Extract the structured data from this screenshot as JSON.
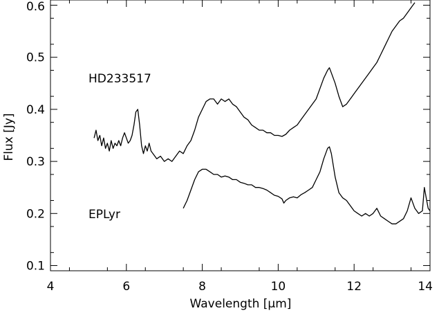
{
  "chart_data": {
    "type": "line",
    "title": "",
    "xlabel": "Wavelength [μm]",
    "ylabel": "Flux [Jy]",
    "xlim": [
      4,
      14
    ],
    "ylim": [
      0.09,
      0.61
    ],
    "xticks": [
      4,
      6,
      8,
      10,
      12,
      14
    ],
    "yticks": [
      0.1,
      0.2,
      0.3,
      0.4,
      0.5,
      0.6
    ],
    "grid": false,
    "legend": "none",
    "annotations": [
      "HD233517",
      "EPLyr"
    ],
    "series": [
      {
        "name": "HD233517",
        "x": [
          5.15,
          5.2,
          5.25,
          5.3,
          5.35,
          5.4,
          5.45,
          5.5,
          5.55,
          5.6,
          5.65,
          5.7,
          5.75,
          5.8,
          5.85,
          5.9,
          5.95,
          6.0,
          6.05,
          6.1,
          6.15,
          6.2,
          6.25,
          6.3,
          6.35,
          6.4,
          6.45,
          6.5,
          6.55,
          6.6,
          6.65,
          6.7,
          6.8,
          6.9,
          7.0,
          7.1,
          7.2,
          7.3,
          7.4,
          7.5,
          7.6,
          7.7,
          7.8,
          7.9,
          8.0,
          8.1,
          8.2,
          8.3,
          8.4,
          8.5,
          8.6,
          8.7,
          8.8,
          8.9,
          9.0,
          9.1,
          9.2,
          9.3,
          9.4,
          9.5,
          9.6,
          9.7,
          9.8,
          9.9,
          10.0,
          10.1,
          10.2,
          10.3,
          10.4,
          10.5,
          10.6,
          10.7,
          10.8,
          10.9,
          11.0,
          11.1,
          11.2,
          11.3,
          11.35,
          11.4,
          11.5,
          11.6,
          11.7,
          11.8,
          11.9,
          12.0,
          12.1,
          12.2,
          12.3,
          12.4,
          12.5,
          12.6,
          12.7,
          12.8,
          12.9,
          13.0,
          13.1,
          13.2,
          13.3,
          13.4,
          13.5,
          13.6
        ],
        "values": [
          0.345,
          0.36,
          0.34,
          0.35,
          0.33,
          0.345,
          0.325,
          0.335,
          0.32,
          0.34,
          0.325,
          0.335,
          0.33,
          0.34,
          0.33,
          0.345,
          0.355,
          0.345,
          0.335,
          0.34,
          0.35,
          0.37,
          0.395,
          0.4,
          0.37,
          0.33,
          0.315,
          0.33,
          0.32,
          0.335,
          0.32,
          0.315,
          0.305,
          0.31,
          0.3,
          0.305,
          0.3,
          0.31,
          0.32,
          0.315,
          0.33,
          0.34,
          0.36,
          0.385,
          0.4,
          0.415,
          0.42,
          0.42,
          0.41,
          0.42,
          0.415,
          0.42,
          0.41,
          0.405,
          0.395,
          0.385,
          0.38,
          0.37,
          0.365,
          0.36,
          0.36,
          0.355,
          0.355,
          0.35,
          0.35,
          0.348,
          0.352,
          0.36,
          0.365,
          0.37,
          0.38,
          0.39,
          0.4,
          0.41,
          0.42,
          0.44,
          0.46,
          0.475,
          0.48,
          0.47,
          0.45,
          0.425,
          0.405,
          0.41,
          0.42,
          0.43,
          0.44,
          0.45,
          0.46,
          0.47,
          0.48,
          0.49,
          0.505,
          0.52,
          0.535,
          0.55,
          0.56,
          0.57,
          0.575,
          0.585,
          0.595,
          0.605
        ]
      },
      {
        "name": "EPLyr",
        "x": [
          7.5,
          7.6,
          7.7,
          7.8,
          7.9,
          8.0,
          8.1,
          8.2,
          8.3,
          8.4,
          8.5,
          8.6,
          8.7,
          8.8,
          8.9,
          9.0,
          9.1,
          9.2,
          9.3,
          9.4,
          9.5,
          9.6,
          9.7,
          9.8,
          9.9,
          10.0,
          10.1,
          10.15,
          10.2,
          10.3,
          10.4,
          10.5,
          10.6,
          10.7,
          10.8,
          10.9,
          11.0,
          11.1,
          11.2,
          11.3,
          11.35,
          11.4,
          11.5,
          11.6,
          11.7,
          11.8,
          11.9,
          12.0,
          12.1,
          12.2,
          12.3,
          12.4,
          12.5,
          12.6,
          12.7,
          12.8,
          12.9,
          13.0,
          13.1,
          13.2,
          13.3,
          13.4,
          13.5,
          13.6,
          13.7,
          13.8,
          13.85,
          13.9,
          13.95,
          14.0
        ],
        "values": [
          0.21,
          0.225,
          0.245,
          0.265,
          0.28,
          0.285,
          0.285,
          0.28,
          0.275,
          0.275,
          0.27,
          0.272,
          0.27,
          0.265,
          0.265,
          0.26,
          0.258,
          0.255,
          0.255,
          0.25,
          0.25,
          0.248,
          0.245,
          0.24,
          0.235,
          0.233,
          0.228,
          0.22,
          0.225,
          0.23,
          0.232,
          0.23,
          0.236,
          0.24,
          0.245,
          0.25,
          0.265,
          0.28,
          0.305,
          0.325,
          0.328,
          0.315,
          0.27,
          0.24,
          0.23,
          0.225,
          0.215,
          0.205,
          0.2,
          0.195,
          0.2,
          0.195,
          0.2,
          0.21,
          0.195,
          0.19,
          0.185,
          0.18,
          0.18,
          0.185,
          0.19,
          0.205,
          0.23,
          0.21,
          0.2,
          0.205,
          0.25,
          0.23,
          0.21,
          0.205
        ]
      }
    ]
  }
}
